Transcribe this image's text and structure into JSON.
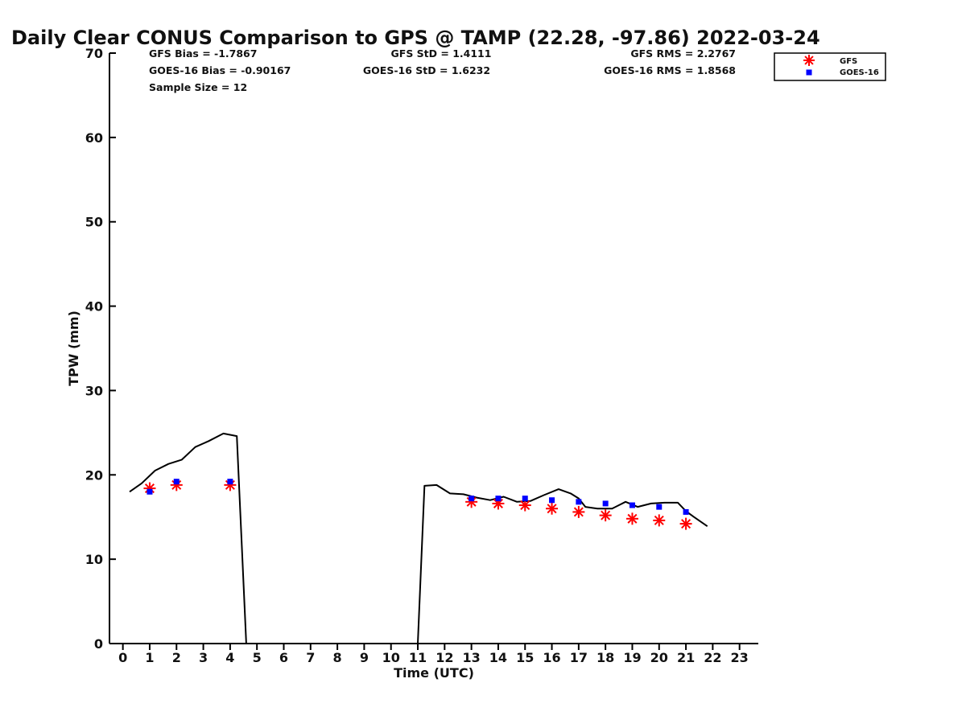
{
  "chart_data": {
    "type": "line",
    "title": "Daily Clear CONUS Comparison to GPS @ TAMP (22.28, -97.86) 2022-03-24",
    "xlabel": "Time (UTC)",
    "ylabel": "TPW (mm)",
    "xlim": [
      -0.5,
      23.7
    ],
    "ylim": [
      0,
      70
    ],
    "x_ticks": [
      0,
      1,
      2,
      3,
      4,
      5,
      6,
      7,
      8,
      9,
      10,
      11,
      12,
      13,
      14,
      15,
      16,
      17,
      18,
      19,
      20,
      21,
      22,
      23
    ],
    "y_ticks": [
      0,
      10,
      20,
      30,
      40,
      50,
      60,
      70
    ],
    "grid": false,
    "legend_position": "top-right",
    "stats": {
      "gfs_bias": "GFS Bias = -1.7867",
      "gfs_std": "GFS StD = 1.4111",
      "gfs_rms": "GFS RMS = 2.2767",
      "goes_bias": "GOES-16 Bias = -0.90167",
      "goes_std": "GOES-16 StD = 1.6232",
      "goes_rms": "GOES-16 RMS = 1.8568",
      "sample_size": "Sample Size = 12"
    },
    "series": [
      {
        "style": "line",
        "color": "#000000",
        "x": [
          0.25,
          0.7,
          1.2,
          1.7,
          2.2,
          2.7,
          3.2,
          3.75,
          4.25,
          4.6,
          11.0,
          11.25,
          11.7,
          12.2,
          12.7,
          13.2,
          13.7,
          14.2,
          14.7,
          15.2,
          15.7,
          16.25,
          16.7,
          17.0,
          17.25,
          17.7,
          18.25,
          18.75,
          19.2,
          19.7,
          20.2,
          20.7,
          21.0,
          21.3,
          21.8
        ],
        "y": [
          18.0,
          19.0,
          20.5,
          21.3,
          21.8,
          23.3,
          24.0,
          24.9,
          24.6,
          0,
          0,
          18.7,
          18.8,
          17.8,
          17.7,
          17.3,
          17.0,
          17.4,
          16.8,
          16.9,
          17.6,
          18.3,
          17.8,
          17.2,
          16.2,
          16.0,
          16.0,
          16.8,
          16.2,
          16.6,
          16.7,
          16.7,
          15.7,
          15.0,
          13.9
        ]
      },
      {
        "name": "GFS",
        "style": "asterisk",
        "color": "#ff0000",
        "x": [
          1,
          2,
          4,
          13,
          14,
          15,
          16,
          17,
          18,
          19,
          20,
          21
        ],
        "y": [
          18.4,
          18.8,
          18.8,
          16.8,
          16.6,
          16.4,
          16.0,
          15.6,
          15.2,
          14.8,
          14.6,
          14.2
        ]
      },
      {
        "name": "GOES-16",
        "style": "square",
        "color": "#0000ff",
        "x": [
          1,
          2,
          4,
          13,
          14,
          15,
          16,
          17,
          18,
          19,
          20,
          21
        ],
        "y": [
          18.0,
          19.2,
          19.2,
          17.2,
          17.2,
          17.2,
          17.0,
          16.8,
          16.6,
          16.4,
          16.2,
          15.6
        ]
      }
    ]
  }
}
